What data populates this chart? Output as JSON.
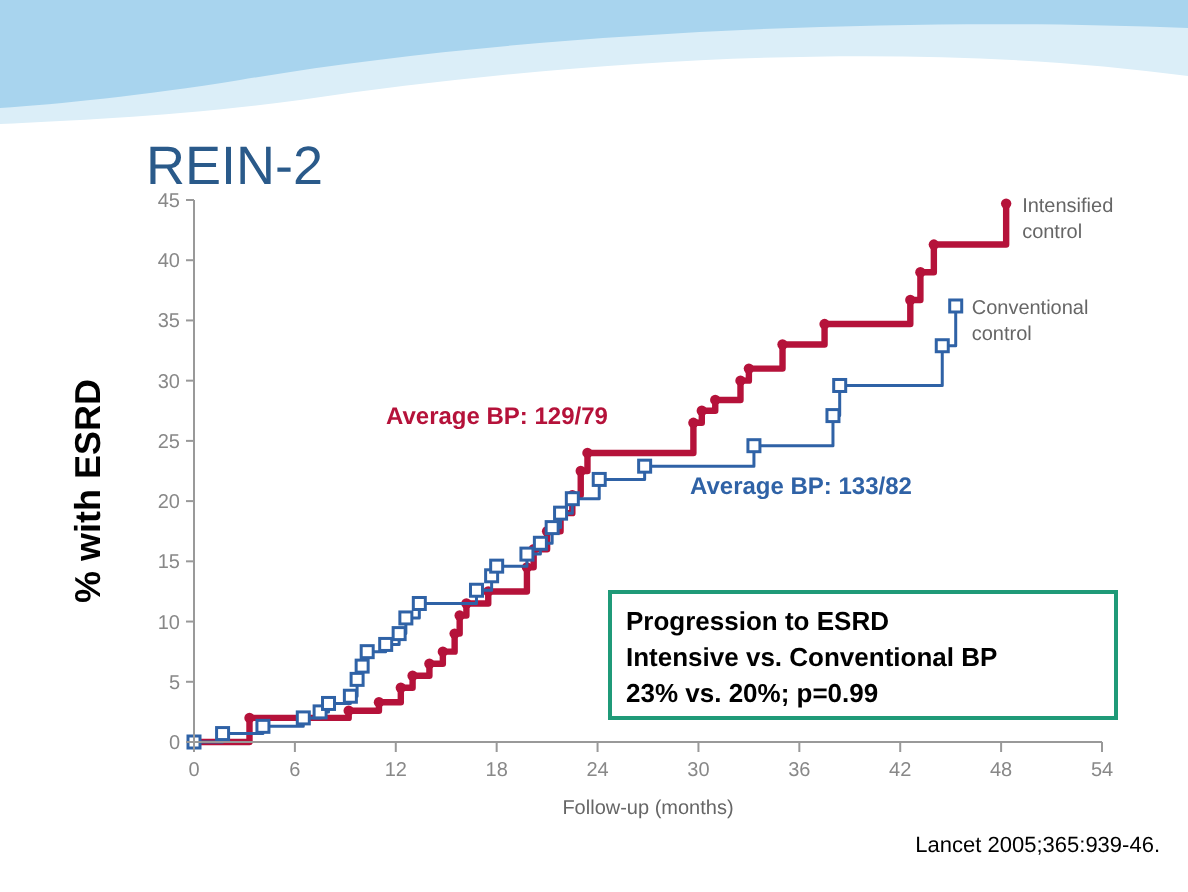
{
  "chart_data": {
    "type": "step",
    "title": "REIN-2",
    "xlabel": "Follow-up (months)",
    "ylabel": "% with ESRD",
    "xlim": [
      0,
      54
    ],
    "xticks": [
      0,
      6,
      12,
      18,
      24,
      30,
      36,
      42,
      48,
      54
    ],
    "ylim": [
      0,
      45
    ],
    "yticks": [
      0,
      5,
      10,
      15,
      20,
      25,
      30,
      35,
      40,
      45
    ],
    "grid": false,
    "legend": false,
    "line_style": "solid",
    "series": [
      {
        "name": "Intensified control",
        "color": "#b5123a",
        "marker": "circle",
        "x": [
          0,
          3.3,
          9.2,
          11,
          12.3,
          13,
          14,
          14.8,
          15.5,
          15.8,
          16.2,
          17.5,
          19.8,
          20.2,
          21,
          21.8,
          22.5,
          23,
          23.4,
          29.7,
          30.2,
          31,
          32.5,
          33,
          35,
          37.5,
          42.6,
          43.2,
          44,
          48.3
        ],
        "values": [
          0,
          2,
          2.6,
          3.3,
          4.5,
          5.5,
          6.5,
          7.5,
          9,
          10.5,
          11.5,
          12.5,
          14.5,
          16,
          17.5,
          19,
          20.5,
          22.5,
          24,
          26.5,
          27.5,
          28.4,
          30,
          31,
          33,
          34.7,
          36.7,
          39,
          41.3,
          44.7
        ]
      },
      {
        "name": "Conventional control",
        "color": "#2f62a6",
        "marker": "square",
        "x": [
          0,
          1.7,
          4.1,
          6.5,
          7.5,
          8,
          9.3,
          9.7,
          10,
          10.3,
          11.4,
          12.2,
          12.6,
          13.4,
          16.8,
          17.7,
          18,
          19.8,
          20.6,
          21.3,
          21.8,
          22.5,
          24.1,
          26.8,
          33.3,
          38,
          38.4,
          44.5,
          45.3
        ],
        "values": [
          0,
          0.7,
          1.3,
          2,
          2.5,
          3.2,
          3.8,
          5.2,
          6.3,
          7.5,
          8.1,
          9,
          10.3,
          11.5,
          12.6,
          13.8,
          14.6,
          15.6,
          16.5,
          17.8,
          19,
          20.2,
          21.8,
          22.9,
          24.6,
          27.1,
          29.6,
          32.9,
          36.2
        ]
      }
    ],
    "annotations": [
      "Average BP: 129/79",
      "Average BP: 133/82",
      "Progression to ESRD\nIntensive vs. Conventional BP\n23% vs. 20%; p=0.99",
      "Lancet 2005;365:939-46."
    ]
  }
}
